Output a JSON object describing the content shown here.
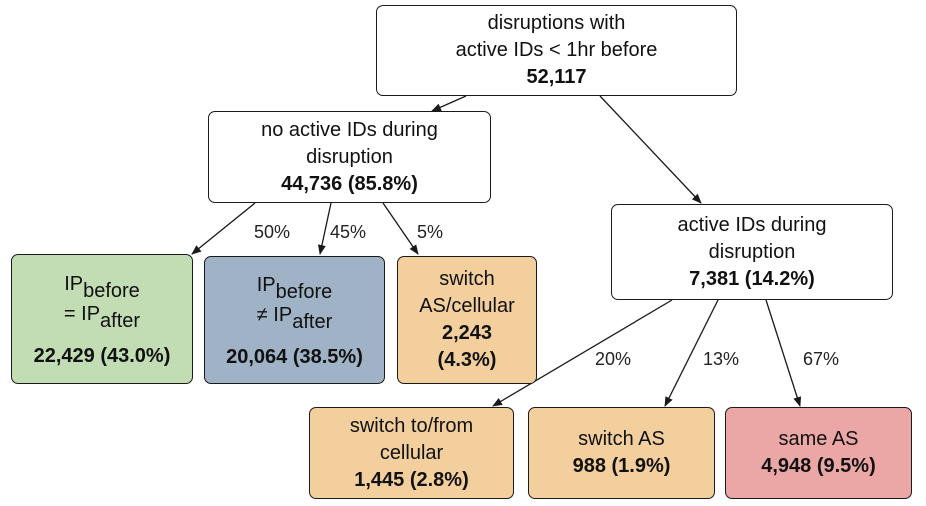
{
  "colors": {
    "white": "#ffffff",
    "green": "#c2dcb4",
    "blue": "#9fb2c6",
    "orange": "#f3cf9e",
    "red": "#eba7a6",
    "line": "#1a1a1a"
  },
  "root": {
    "line1": "disruptions with",
    "line2": "active IDs < 1hr before",
    "value": "52,117"
  },
  "no_active": {
    "line1": "no active IDs during",
    "line2": "disruption",
    "value": "44,736 (85.8%)"
  },
  "active": {
    "line1": "active IDs during",
    "line2": "disruption",
    "value": "7,381 (14.2%)"
  },
  "same_ip": {
    "ip1": "IP",
    "sub1": "before",
    "ip2": "= IP",
    "sub2": "after",
    "value": "22,429 (43.0%)"
  },
  "diff_ip": {
    "ip1": "IP",
    "sub1": "before",
    "ip2": "≠ IP",
    "sub2": "after",
    "value": "20,064 (38.5%)"
  },
  "switch_as_cell": {
    "line1": "switch",
    "line2": "AS/cellular",
    "value1": "2,243",
    "value2": "(4.3%)"
  },
  "switch_cellular": {
    "line1": "switch to/from",
    "line2": "cellular",
    "value": "1,445 (2.8%)"
  },
  "switch_as": {
    "line1": "switch AS",
    "value": "988 (1.9%)"
  },
  "same_as": {
    "line1": "same AS",
    "value": "4,948 (9.5%)"
  },
  "edge_labels": {
    "p50": "50%",
    "p45": "45%",
    "p5": "5%",
    "p20": "20%",
    "p13": "13%",
    "p67": "67%"
  }
}
